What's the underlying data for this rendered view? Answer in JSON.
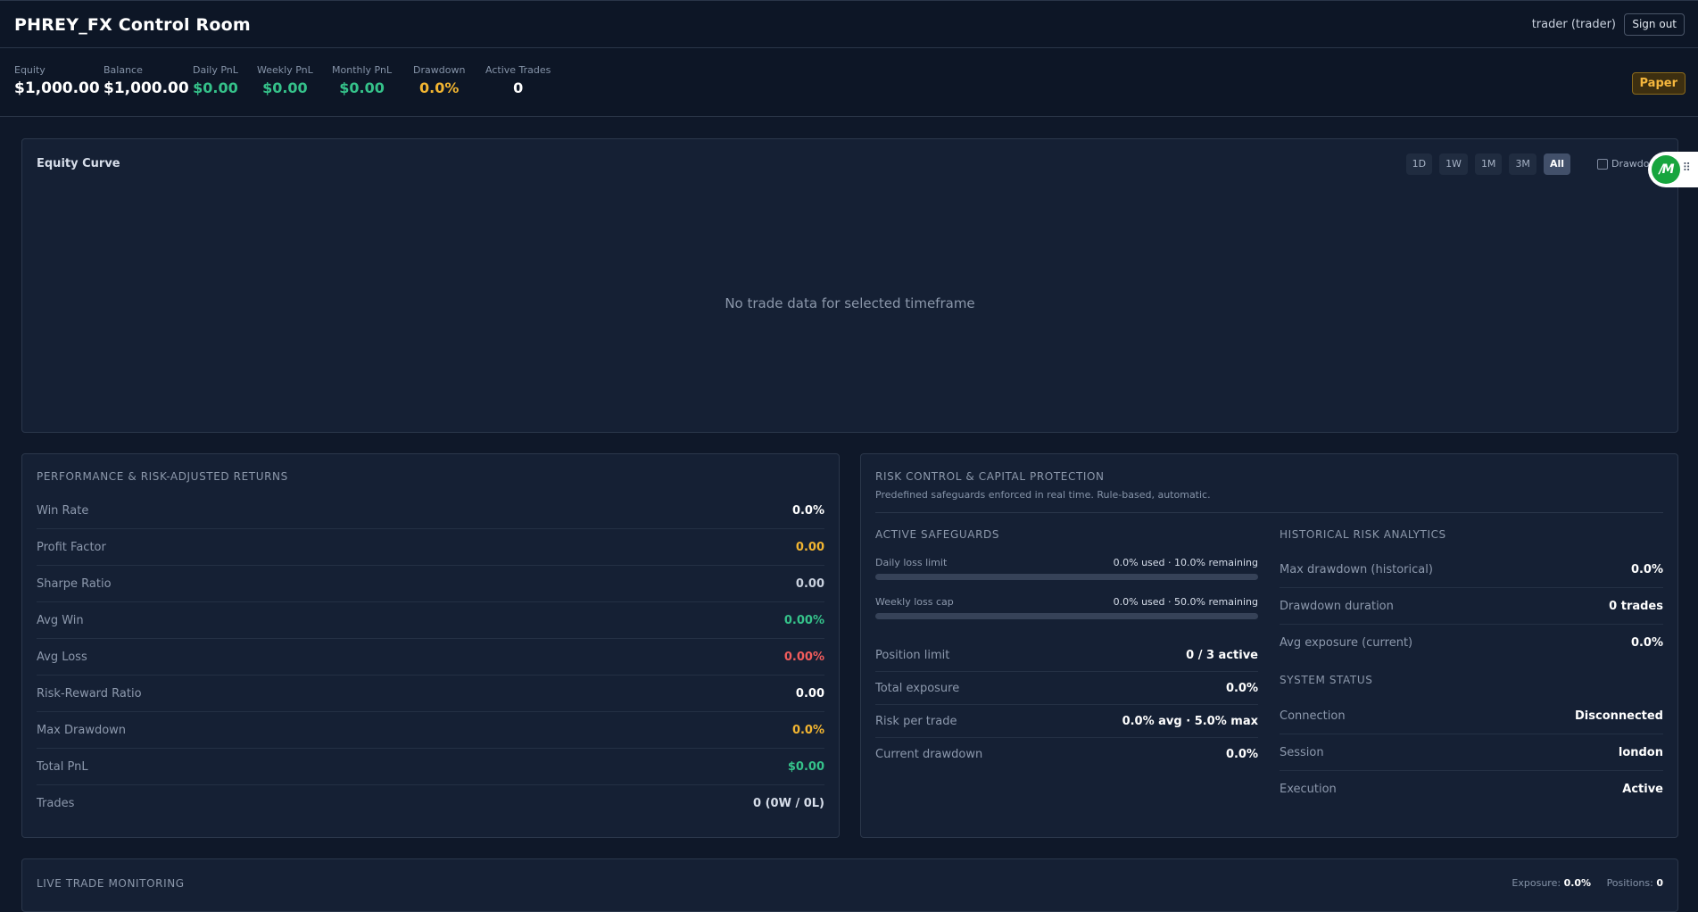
{
  "header": {
    "title": "PHREY_FX Control Room",
    "user": "trader (trader)",
    "signout_label": "Sign out"
  },
  "metrics": [
    {
      "label": "Equity",
      "value": "$1,000.00"
    },
    {
      "label": "Balance",
      "value": "$1,000.00"
    },
    {
      "label": "Daily PnL",
      "value": "$0.00"
    },
    {
      "label": "Weekly PnL",
      "value": "$0.00"
    },
    {
      "label": "Monthly PnL",
      "value": "$0.00"
    },
    {
      "label": "Drawdown",
      "value": "0.0%"
    },
    {
      "label": "Active Trades",
      "value": "0"
    }
  ],
  "mode_badge": "Paper",
  "equity_curve": {
    "title": "Equity Curve",
    "timeframes": [
      "1D",
      "1W",
      "1M",
      "3M",
      "All"
    ],
    "active_timeframe": "All",
    "drawdown_toggle_label": "Drawdown",
    "drawdown_checked": false,
    "empty_message": "No trade data for selected timeframe"
  },
  "widget": {
    "logo": "/M",
    "icon": "grip-icon"
  },
  "performance": {
    "heading": "PERFORMANCE & RISK-ADJUSTED RETURNS",
    "rows": [
      {
        "label": "Win Rate",
        "value": "0.0%"
      },
      {
        "label": "Profit Factor",
        "value": "0.00"
      },
      {
        "label": "Sharpe Ratio",
        "value": "0.00"
      },
      {
        "label": "Avg Win",
        "value": "0.00%"
      },
      {
        "label": "Avg Loss",
        "value": "0.00%"
      },
      {
        "label": "Risk-Reward Ratio",
        "value": "0.00"
      },
      {
        "label": "Max Drawdown",
        "value": "0.0%"
      },
      {
        "label": "Total PnL",
        "value": "$0.00"
      },
      {
        "label": "Trades",
        "value": "0 (0W / 0L)"
      }
    ]
  },
  "risk": {
    "heading": "RISK CONTROL & CAPITAL PROTECTION",
    "subtitle": "Predefined safeguards enforced in real time. Rule-based, automatic.",
    "safeguards_heading": "ACTIVE SAFEGUARDS",
    "safeguards": [
      {
        "label": "Daily loss limit",
        "value": "0.0% used · 10.0% remaining",
        "used_fraction": 0.0
      },
      {
        "label": "Weekly loss cap",
        "value": "0.0% used · 50.0% remaining",
        "used_fraction": 0.0
      }
    ],
    "limits": [
      {
        "label": "Position limit",
        "value": "0 / 3 active"
      },
      {
        "label": "Total exposure",
        "value": "0.0%"
      },
      {
        "label": "Risk per trade",
        "value": "0.0% avg · 5.0% max"
      },
      {
        "label": "Current drawdown",
        "value": "0.0%"
      }
    ],
    "historical_heading": "HISTORICAL RISK ANALYTICS",
    "historical": [
      {
        "label": "Max drawdown (historical)",
        "value": "0.0%"
      },
      {
        "label": "Drawdown duration",
        "value": "0 trades"
      },
      {
        "label": "Avg exposure (current)",
        "value": "0.0%"
      }
    ],
    "system_heading": "SYSTEM STATUS",
    "system": [
      {
        "label": "Connection",
        "value": "Disconnected"
      },
      {
        "label": "Session",
        "value": "london"
      },
      {
        "label": "Execution",
        "value": "Active"
      }
    ]
  },
  "live_monitoring": {
    "heading": "LIVE TRADE MONITORING",
    "exposure_label": "Exposure:",
    "exposure_value": "0.0%",
    "positions_label": "Positions:",
    "positions_value": "0"
  },
  "colors": {
    "background": "#0f1829",
    "card": "#152034",
    "positive": "#35c28a",
    "warning": "#f2b531",
    "negative": "#f25c5c"
  }
}
